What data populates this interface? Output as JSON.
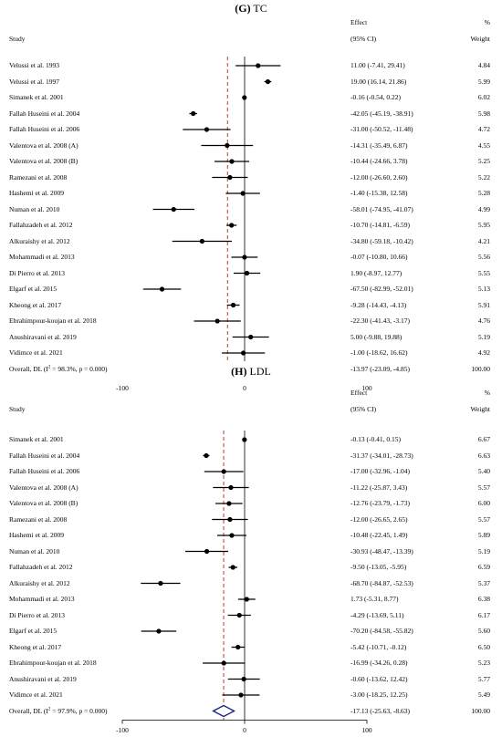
{
  "chart_data": [
    {
      "type": "forest",
      "panel_label": "(G)",
      "title": "TC",
      "headers": {
        "study": "Study",
        "effect_line1": "Effect",
        "effect_line2": "(95% CI)",
        "weight_line1": "%",
        "weight_line2": "Weight"
      },
      "xticks": [
        "-100",
        "0",
        "100"
      ],
      "xlim": [
        -100,
        100
      ],
      "overall_line": -13.97,
      "studies": [
        {
          "name": "Velussi et al. 1993",
          "es": 11.0,
          "lo": -7.41,
          "hi": 29.41,
          "ci": "11.00 (-7.41, 29.41)",
          "weight": "4.84"
        },
        {
          "name": "Velussi et al. 1997",
          "es": 19.0,
          "lo": 16.14,
          "hi": 21.86,
          "ci": "19.00 (16.14, 21.86)",
          "weight": "5.99"
        },
        {
          "name": "Simanek et al. 2001",
          "es": -0.16,
          "lo": -0.54,
          "hi": 0.22,
          "ci": "-0.16 (-0.54, 0.22)",
          "weight": "6.02"
        },
        {
          "name": "Fallah Huseini et al. 2004",
          "es": -42.05,
          "lo": -45.19,
          "hi": -38.91,
          "ci": "-42.05 (-45.19, -38.91)",
          "weight": "5.98"
        },
        {
          "name": "Fallah Huseini et al. 2006",
          "es": -31.0,
          "lo": -50.52,
          "hi": -11.48,
          "ci": "-31.00 (-50.52, -11.48)",
          "weight": "4.72"
        },
        {
          "name": "Valentova et al. 2008 (A)",
          "es": -14.31,
          "lo": -35.49,
          "hi": 6.87,
          "ci": "-14.31 (-35.49, 6.87)",
          "weight": "4.55"
        },
        {
          "name": "Valentova et al. 2008 (B)",
          "es": -10.44,
          "lo": -24.66,
          "hi": 3.78,
          "ci": "-10.44 (-24.66, 3.78)",
          "weight": "5.25"
        },
        {
          "name": "Ramezani et al. 2008",
          "es": -12.0,
          "lo": -26.6,
          "hi": 2.6,
          "ci": "-12.00 (-26.60, 2.60)",
          "weight": "5.22"
        },
        {
          "name": "Hashemi et al. 2009",
          "es": -1.4,
          "lo": -15.38,
          "hi": 12.58,
          "ci": "-1.40 (-15.38, 12.58)",
          "weight": "5.28"
        },
        {
          "name": "Numan et al. 2010",
          "es": -58.01,
          "lo": -74.95,
          "hi": -41.07,
          "ci": "-58.01 (-74.95, -41.07)",
          "weight": "4.99"
        },
        {
          "name": "Fallahzadeh et al. 2012",
          "es": -10.7,
          "lo": -14.81,
          "hi": -6.59,
          "ci": "-10.70 (-14.81, -6.59)",
          "weight": "5.95"
        },
        {
          "name": "Alkuraishy et al. 2012",
          "es": -34.8,
          "lo": -59.18,
          "hi": -10.42,
          "ci": "-34.80 (-59.18, -10.42)",
          "weight": "4.21"
        },
        {
          "name": "Mohammadi et al. 2013",
          "es": -0.07,
          "lo": -10.8,
          "hi": 10.66,
          "ci": "-0.07 (-10.80, 10.66)",
          "weight": "5.56"
        },
        {
          "name": "Di Pierro et al. 2013",
          "es": 1.9,
          "lo": -8.97,
          "hi": 12.77,
          "ci": "1.90 (-8.97, 12.77)",
          "weight": "5.55"
        },
        {
          "name": "Elgarf et al. 2015",
          "es": -67.5,
          "lo": -82.99,
          "hi": -52.01,
          "ci": "-67.50 (-82.99, -52.01)",
          "weight": "5.13"
        },
        {
          "name": "Kheong et al. 2017",
          "es": -9.28,
          "lo": -14.43,
          "hi": -4.13,
          "ci": "-9.28 (-14.43, -4.13)",
          "weight": "5.91"
        },
        {
          "name": "Ebrahimpour-koujan et al. 2018",
          "es": -22.3,
          "lo": -41.43,
          "hi": -3.17,
          "ci": "-22.30 (-41.43, -3.17)",
          "weight": "4.76"
        },
        {
          "name": "Anushiravani et al. 2019",
          "es": 5.0,
          "lo": -9.88,
          "hi": 19.88,
          "ci": "5.00 (-9.88, 19.88)",
          "weight": "5.19"
        },
        {
          "name": "Vidimce et al. 2021",
          "es": -1.0,
          "lo": -18.62,
          "hi": 16.62,
          "ci": "-1.00 (-18.62, 16.62)",
          "weight": "4.92"
        }
      ],
      "overall": {
        "prefix": "Overall, DL (I",
        "sup": "2",
        "suffix": " = 98.3%, p = 0.000)",
        "es": -13.97,
        "lo": -23.09,
        "hi": -4.85,
        "ci": "-13.97 (-23.09, -4.85)",
        "weight": "100.00"
      }
    },
    {
      "type": "forest",
      "panel_label": "(H)",
      "title": "LDL",
      "headers": {
        "study": "Study",
        "effect_line1": "Effect",
        "effect_line2": "(95% CI)",
        "weight_line1": "%",
        "weight_line2": "Weight"
      },
      "xticks": [
        "-100",
        "0",
        "100"
      ],
      "xlim": [
        -100,
        100
      ],
      "overall_line": -17.13,
      "studies": [
        {
          "name": "Simanek et al. 2001",
          "es": -0.13,
          "lo": -0.41,
          "hi": 0.15,
          "ci": "-0.13 (-0.41, 0.15)",
          "weight": "6.67"
        },
        {
          "name": "Fallah Huseini et al. 2004",
          "es": -31.37,
          "lo": -34.01,
          "hi": -28.73,
          "ci": "-31.37 (-34.01, -28.73)",
          "weight": "6.63"
        },
        {
          "name": "Fallah Huseini et al. 2006",
          "es": -17.0,
          "lo": -32.96,
          "hi": -1.04,
          "ci": "-17.00 (-32.96, -1.04)",
          "weight": "5.40"
        },
        {
          "name": "Valentova et al. 2008 (A)",
          "es": -11.22,
          "lo": -25.87,
          "hi": 3.43,
          "ci": "-11.22 (-25.87, 3.43)",
          "weight": "5.57"
        },
        {
          "name": "Valentova et al. 2008 (B)",
          "es": -12.76,
          "lo": -23.79,
          "hi": -1.73,
          "ci": "-12.76 (-23.79, -1.73)",
          "weight": "6.00"
        },
        {
          "name": "Ramezani et al. 2008",
          "es": -12.0,
          "lo": -26.65,
          "hi": 2.65,
          "ci": "-12.00 (-26.65, 2.65)",
          "weight": "5.57"
        },
        {
          "name": "Hashemi et al. 2009",
          "es": -10.48,
          "lo": -22.45,
          "hi": 1.49,
          "ci": "-10.48 (-22.45, 1.49)",
          "weight": "5.89"
        },
        {
          "name": "Numan et al. 2010",
          "es": -30.93,
          "lo": -48.47,
          "hi": -13.39,
          "ci": "-30.93 (-48.47, -13.39)",
          "weight": "5.19"
        },
        {
          "name": "Fallahzadeh et al. 2012",
          "es": -9.5,
          "lo": -13.05,
          "hi": -5.95,
          "ci": "-9.50 (-13.05, -5.95)",
          "weight": "6.59"
        },
        {
          "name": "Alkuraishy et al. 2012",
          "es": -68.7,
          "lo": -84.87,
          "hi": -52.53,
          "ci": "-68.70 (-84.87, -52.53)",
          "weight": "5.37"
        },
        {
          "name": "Mohammadi et al. 2013",
          "es": 1.73,
          "lo": -5.31,
          "hi": 8.77,
          "ci": "1.73 (-5.31, 8.77)",
          "weight": "6.38"
        },
        {
          "name": "Di Pierro et al. 2013",
          "es": -4.29,
          "lo": -13.69,
          "hi": 5.11,
          "ci": "-4.29 (-13.69, 5.11)",
          "weight": "6.17"
        },
        {
          "name": "Elgarf et al. 2015",
          "es": -70.2,
          "lo": -84.58,
          "hi": -55.82,
          "ci": "-70.20 (-84.58, -55.82)",
          "weight": "5.60"
        },
        {
          "name": "Kheong et al. 2017",
          "es": -5.42,
          "lo": -10.71,
          "hi": -0.12,
          "ci": "-5.42 (-10.71, -0.12)",
          "weight": "6.50"
        },
        {
          "name": "Ebrahimpour-koujan et al. 2018",
          "es": -16.99,
          "lo": -34.26,
          "hi": 0.28,
          "ci": "-16.99 (-34.26, 0.28)",
          "weight": "5.23"
        },
        {
          "name": "Anushiravani et al. 2019",
          "es": -0.6,
          "lo": -13.62,
          "hi": 12.42,
          "ci": "-0.60 (-13.62, 12.42)",
          "weight": "5.77"
        },
        {
          "name": "Vidimce et al. 2021",
          "es": -3.0,
          "lo": -18.25,
          "hi": 12.25,
          "ci": "-3.00 (-18.25, 12.25)",
          "weight": "5.49"
        }
      ],
      "overall": {
        "prefix": "Overall, DL (I",
        "sup": "2",
        "suffix": " = 97.9%, p = 0.000)",
        "es": -17.13,
        "lo": -25.63,
        "hi": -8.63,
        "ci": "-17.13 (-25.63, -8.63)",
        "weight": "100.00"
      }
    }
  ],
  "colors": {
    "overall_line": "#c0392b",
    "diamond": "#1a237e",
    "marks": "#000000"
  }
}
